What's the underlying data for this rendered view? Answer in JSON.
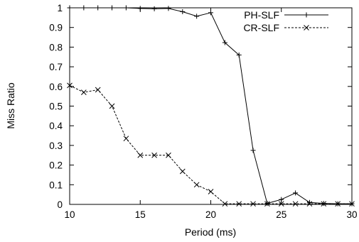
{
  "chart_data": {
    "type": "line",
    "title": "",
    "xlabel": "Period (ms)",
    "ylabel": "Miss Ratio",
    "xlim": [
      10,
      30
    ],
    "ylim": [
      0,
      1
    ],
    "x_ticks": [
      10,
      15,
      20,
      25,
      30
    ],
    "x_tick_labels": [
      "10",
      "15",
      "20",
      "25",
      "30"
    ],
    "y_ticks": [
      0,
      0.1,
      0.2,
      0.3,
      0.4,
      0.5,
      0.6,
      0.7,
      0.8,
      0.9,
      1
    ],
    "y_tick_labels": [
      "0",
      "0.1",
      "0.2",
      "0.3",
      "0.4",
      "0.5",
      "0.6",
      "0.7",
      "0.8",
      "0.9",
      "1"
    ],
    "grid": false,
    "legend_position": "top-right",
    "series": [
      {
        "name": "PH-SLF",
        "line_style": "solid",
        "marker": "plus",
        "color": "#000000",
        "x": [
          10,
          11,
          12,
          13,
          14,
          15,
          16,
          17,
          18,
          19,
          20,
          21,
          22,
          23,
          24,
          25,
          26,
          27,
          28,
          29,
          30
        ],
        "y": [
          1.0,
          1.0,
          1.0,
          1.0,
          1.0,
          0.997,
          0.995,
          0.997,
          0.98,
          0.957,
          0.975,
          0.823,
          0.76,
          0.275,
          0.005,
          0.025,
          0.058,
          0.01,
          0.005,
          0.003,
          0.003
        ]
      },
      {
        "name": "CR-SLF",
        "line_style": "dashed",
        "marker": "cross",
        "color": "#000000",
        "x": [
          10,
          11,
          12,
          13,
          14,
          15,
          16,
          17,
          18,
          19,
          20,
          21,
          22,
          23,
          24,
          25,
          26,
          27,
          28,
          29,
          30
        ],
        "y": [
          0.605,
          0.57,
          0.583,
          0.5,
          0.335,
          0.25,
          0.25,
          0.25,
          0.168,
          0.1,
          0.065,
          0.003,
          0.003,
          0.003,
          0.003,
          0.003,
          0.003,
          0.003,
          0.003,
          0.003,
          0.003
        ]
      }
    ]
  }
}
